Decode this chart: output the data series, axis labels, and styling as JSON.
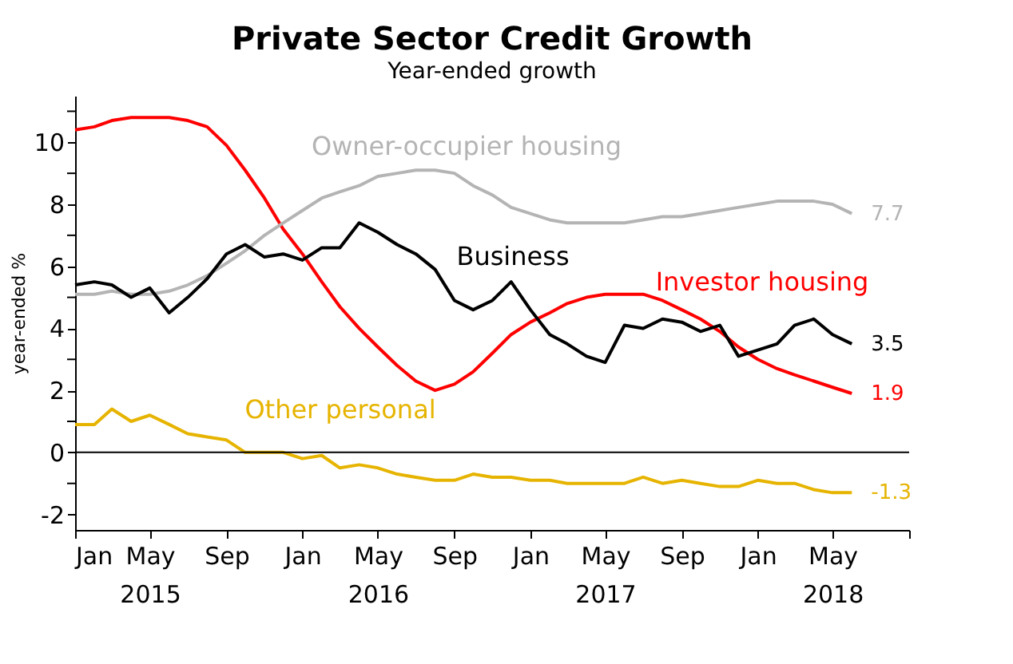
{
  "chart_data": {
    "type": "line",
    "title": "Private Sector Credit Growth",
    "subtitle": "Year-ended growth",
    "ylabel": "year-ended %",
    "x": [
      "2015-01",
      "2015-02",
      "2015-03",
      "2015-04",
      "2015-05",
      "2015-06",
      "2015-07",
      "2015-08",
      "2015-09",
      "2015-10",
      "2015-11",
      "2015-12",
      "2016-01",
      "2016-02",
      "2016-03",
      "2016-04",
      "2016-05",
      "2016-06",
      "2016-07",
      "2016-08",
      "2016-09",
      "2016-10",
      "2016-11",
      "2016-12",
      "2017-01",
      "2017-02",
      "2017-03",
      "2017-04",
      "2017-05",
      "2017-06",
      "2017-07",
      "2017-08",
      "2017-09",
      "2017-10",
      "2017-11",
      "2017-12",
      "2018-01",
      "2018-02",
      "2018-03",
      "2018-04",
      "2018-05",
      "2018-06"
    ],
    "series": [
      {
        "name": "Investor housing",
        "color": "#ff0000",
        "values": [
          10.4,
          10.5,
          10.7,
          10.8,
          10.8,
          10.8,
          10.7,
          10.5,
          9.9,
          9.1,
          8.2,
          7.2,
          6.4,
          5.5,
          4.7,
          4.0,
          3.4,
          2.8,
          2.3,
          2.0,
          2.2,
          2.6,
          3.2,
          3.8,
          4.2,
          4.5,
          4.8,
          5.0,
          5.1,
          5.1,
          5.1,
          4.9,
          4.6,
          4.3,
          3.9,
          3.4,
          3.0,
          2.7,
          2.5,
          2.3,
          2.1,
          1.9
        ],
        "value_labels": [
          null,
          null,
          null,
          null,
          null,
          null,
          null,
          null,
          null,
          null,
          null,
          null,
          null,
          null,
          null,
          null,
          null,
          null,
          null,
          null,
          null,
          null,
          null,
          null,
          null,
          null,
          null,
          null,
          null,
          null,
          null,
          null,
          null,
          null,
          null,
          null,
          null,
          null,
          null,
          null,
          null,
          "1.9"
        ]
      },
      {
        "name": "Owner-occupier housing",
        "color": "#b4b4b4",
        "values": [
          5.1,
          5.1,
          5.2,
          5.1,
          5.1,
          5.2,
          5.4,
          5.7,
          6.1,
          6.5,
          7.0,
          7.4,
          7.8,
          8.2,
          8.4,
          8.6,
          8.9,
          9.0,
          9.1,
          9.1,
          9.0,
          8.6,
          8.3,
          7.9,
          7.7,
          7.5,
          7.4,
          7.4,
          7.4,
          7.4,
          7.5,
          7.6,
          7.6,
          7.7,
          7.8,
          7.9,
          8.0,
          8.1,
          8.1,
          8.1,
          8.0,
          7.7
        ],
        "value_labels": [
          null,
          null,
          null,
          null,
          null,
          null,
          null,
          null,
          null,
          null,
          null,
          null,
          null,
          null,
          null,
          null,
          null,
          null,
          null,
          null,
          null,
          null,
          null,
          null,
          null,
          null,
          null,
          null,
          null,
          null,
          null,
          null,
          null,
          null,
          null,
          null,
          null,
          null,
          null,
          null,
          null,
          "7.7"
        ]
      },
      {
        "name": "Business",
        "color": "#000000",
        "values": [
          5.4,
          5.5,
          5.4,
          5.0,
          5.3,
          4.5,
          5.0,
          5.6,
          6.4,
          6.7,
          6.3,
          6.4,
          6.2,
          6.6,
          6.6,
          7.4,
          7.1,
          6.7,
          6.4,
          5.9,
          4.9,
          4.6,
          4.9,
          5.5,
          4.6,
          3.8,
          3.5,
          3.1,
          2.9,
          4.1,
          4.0,
          4.3,
          4.2,
          3.9,
          4.1,
          3.1,
          3.3,
          3.5,
          4.1,
          4.3,
          3.8,
          3.5
        ],
        "value_labels": [
          null,
          null,
          null,
          null,
          null,
          null,
          null,
          null,
          null,
          null,
          null,
          null,
          null,
          null,
          null,
          null,
          null,
          null,
          null,
          null,
          null,
          null,
          null,
          null,
          null,
          null,
          null,
          null,
          null,
          null,
          null,
          null,
          null,
          null,
          null,
          null,
          null,
          null,
          null,
          null,
          null,
          "3.5"
        ]
      },
      {
        "name": "Other personal",
        "color": "#e6b400",
        "values": [
          0.9,
          0.9,
          1.4,
          1.0,
          1.2,
          0.9,
          0.6,
          0.5,
          0.4,
          0.0,
          0.0,
          0.0,
          -0.2,
          -0.1,
          -0.5,
          -0.4,
          -0.5,
          -0.7,
          -0.8,
          -0.9,
          -0.9,
          -0.7,
          -0.8,
          -0.8,
          -0.9,
          -0.9,
          -1.0,
          -1.0,
          -1.0,
          -1.0,
          -0.8,
          -1.0,
          -0.9,
          -1.0,
          -1.1,
          -1.1,
          -0.9,
          -1.0,
          -1.0,
          -1.2,
          -1.3,
          -1.3
        ],
        "value_labels": [
          null,
          null,
          null,
          null,
          null,
          null,
          null,
          null,
          null,
          null,
          null,
          null,
          null,
          null,
          null,
          null,
          null,
          null,
          null,
          null,
          null,
          null,
          null,
          null,
          null,
          null,
          null,
          null,
          null,
          null,
          null,
          null,
          null,
          null,
          null,
          null,
          null,
          null,
          null,
          null,
          null,
          "-1.3"
        ]
      }
    ],
    "xlim": [
      "2015-01",
      "2018-09"
    ],
    "xticks": [
      {
        "value": "2015-01",
        "label": "Jan"
      },
      {
        "value": "2015-05",
        "label": "May\n2015"
      },
      {
        "value": "2015-09",
        "label": "Sep"
      },
      {
        "value": "2016-01",
        "label": "Jan"
      },
      {
        "value": "2016-05",
        "label": "May\n2016"
      },
      {
        "value": "2016-09",
        "label": "Sep"
      },
      {
        "value": "2017-01",
        "label": "Jan"
      },
      {
        "value": "2017-05",
        "label": "May\n2017"
      },
      {
        "value": "2017-09",
        "label": "Sep"
      },
      {
        "value": "2018-01",
        "label": "Jan"
      },
      {
        "value": "2018-05",
        "label": "May\n2018"
      },
      {
        "value": "2018-09",
        "label": null
      }
    ],
    "ylim": [
      -2.5,
      11.5
    ],
    "yticks": [
      -2,
      {
        "value": -1,
        "label": null
      },
      0,
      {
        "value": 1,
        "label": null
      },
      2,
      {
        "value": 3,
        "label": null
      },
      4,
      {
        "value": 5,
        "label": null
      },
      6,
      {
        "value": 7,
        "label": null
      },
      8,
      {
        "value": 9,
        "label": null
      },
      10,
      {
        "value": 11,
        "label": null
      }
    ],
    "ref_lines": [
      {
        "axis": "y",
        "value": 0,
        "color": "#000000"
      }
    ],
    "grid": false,
    "legend": false
  }
}
